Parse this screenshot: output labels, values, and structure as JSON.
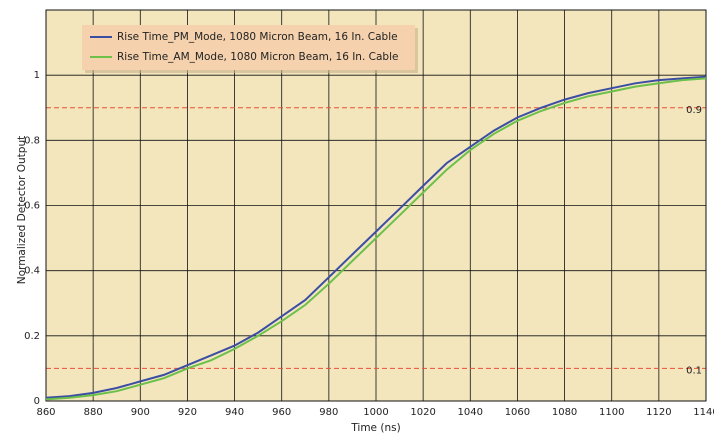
{
  "chart_data": {
    "type": "line",
    "xlabel": "Time (ns)",
    "ylabel": "Normalized Detector Output",
    "x": [
      860,
      870,
      880,
      890,
      900,
      910,
      920,
      930,
      940,
      950,
      960,
      970,
      980,
      990,
      1000,
      1010,
      1020,
      1030,
      1040,
      1050,
      1060,
      1070,
      1080,
      1090,
      1100,
      1110,
      1120,
      1130,
      1140
    ],
    "series": [
      {
        "name": "Rise Time_PM_Mode, 1080 Micron Beam, 16 In. Cable",
        "color": "#3b4ea3",
        "values": [
          0.01,
          0.015,
          0.025,
          0.04,
          0.06,
          0.08,
          0.11,
          0.14,
          0.17,
          0.21,
          0.26,
          0.31,
          0.38,
          0.45,
          0.52,
          0.59,
          0.66,
          0.73,
          0.78,
          0.83,
          0.87,
          0.9,
          0.925,
          0.945,
          0.96,
          0.975,
          0.985,
          0.99,
          0.995
        ]
      },
      {
        "name": "Rise Time_AM_Mode, 1080 Micron Beam, 16 In. Cable",
        "color": "#6cc04a",
        "values": [
          0.005,
          0.01,
          0.018,
          0.03,
          0.05,
          0.07,
          0.1,
          0.125,
          0.16,
          0.2,
          0.245,
          0.295,
          0.36,
          0.43,
          0.5,
          0.57,
          0.64,
          0.71,
          0.77,
          0.82,
          0.86,
          0.89,
          0.915,
          0.935,
          0.95,
          0.965,
          0.975,
          0.985,
          0.99
        ]
      }
    ],
    "xlim": [
      860,
      1140
    ],
    "xticks": [
      860,
      880,
      900,
      920,
      940,
      960,
      980,
      1000,
      1020,
      1040,
      1060,
      1080,
      1100,
      1120,
      1140
    ],
    "ylim": [
      0,
      1.2
    ],
    "yticks": [
      0,
      0.2,
      0.4,
      0.6,
      0.8,
      1
    ],
    "reference_lines": [
      0.1,
      0.9
    ],
    "grid": true,
    "legend": "upper left"
  }
}
